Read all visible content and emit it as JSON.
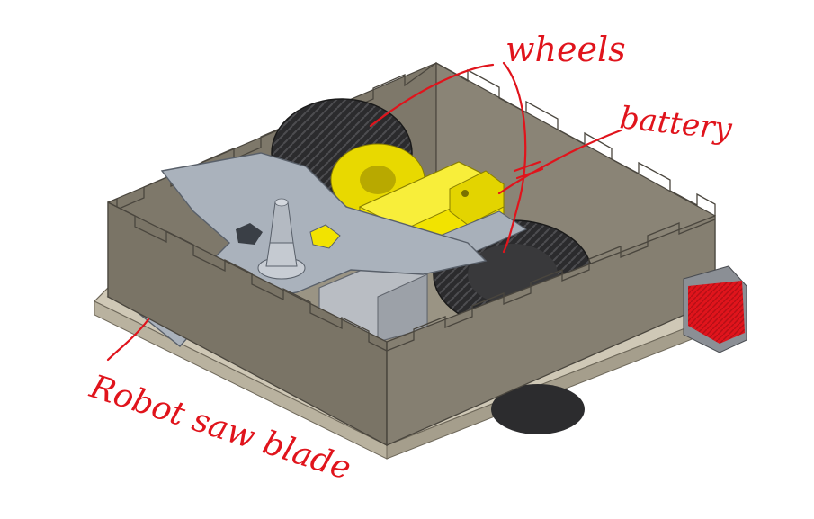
{
  "annotations": {
    "wheels": "wheels",
    "battery": "battery",
    "saw_blade": "Robot saw blade"
  },
  "colors": {
    "annotation_red": "#e0141c",
    "box_wall": "#7a7466",
    "box_wall_light": "#8f897b",
    "box_edge": "#4a463e",
    "blade": "#a9b1bb",
    "blade_edge": "#59606a",
    "motor_yellow": "#f2e300",
    "tire": "#2a2a2c",
    "battery_gray": "#b8bcc2"
  },
  "icons": {
    "robot": "robot-illustration",
    "wheel": "wheel-icon",
    "blade": "saw-blade-icon"
  }
}
